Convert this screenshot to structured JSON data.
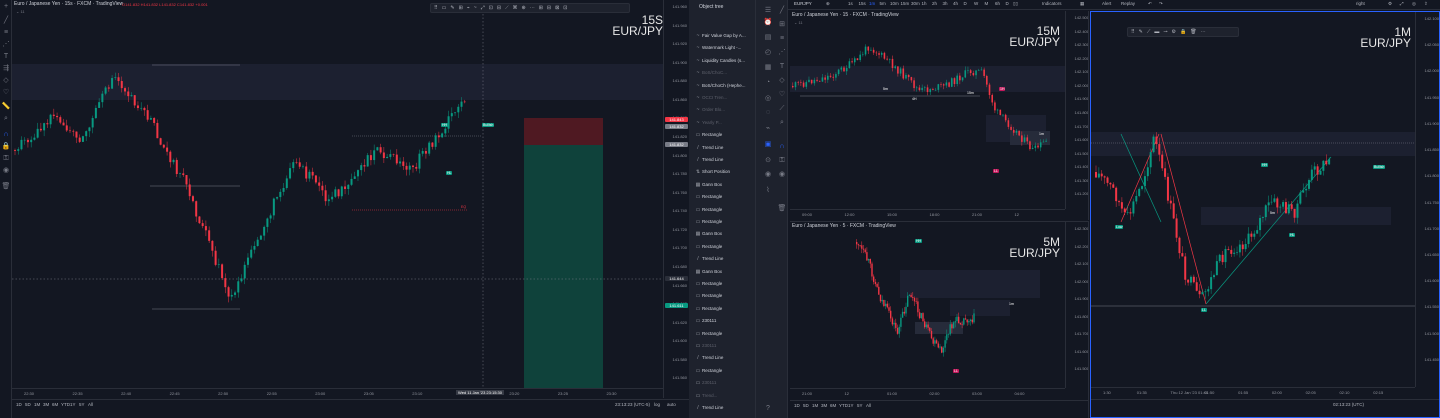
{
  "left_chart": {
    "title": "Euro / Japanese Yen · 15s · FXCM · TradingView",
    "watermark_interval": "15S",
    "watermark_symbol": "EUR/JPY",
    "prices": [
      "141.960",
      "141.940",
      "141.920",
      "141.900",
      "141.880",
      "141.860",
      "141.840",
      "141.820",
      "141.800",
      "141.780",
      "141.760",
      "141.740",
      "141.720",
      "141.700",
      "141.680",
      "141.660",
      "141.640",
      "141.620",
      "141.600",
      "141.580",
      "141.560"
    ],
    "price_badges": [
      {
        "text": "141.843",
        "color": "#f23645"
      },
      {
        "text": "141.832",
        "color": "#787b86"
      },
      {
        "text": "141.832",
        "color": "#787b86"
      },
      {
        "text": "141.644",
        "color": "#2a2e39"
      },
      {
        "text": "141.611",
        "color": "#089981"
      }
    ],
    "times": [
      "22:30",
      "22:35",
      "22:40",
      "22:45",
      "22:50",
      "22:55",
      "23:00",
      "23:05",
      "23:10",
      "23:15",
      "23:20",
      "23:25",
      "23:30"
    ],
    "cursor_time": "Wed 11 Jan '23 23:15:30",
    "intervals": [
      "1D",
      "5D",
      "1M",
      "3M",
      "6M",
      "YTD",
      "1Y",
      "5Y",
      "All"
    ],
    "clock": "23:13:23 (UTC-5)",
    "log_label": "log",
    "auto_label": "auto",
    "labels": {
      "bullish": "Bullish",
      "hh": "HH",
      "hl": "HL",
      "eq": "EQ"
    }
  },
  "object_tree": {
    "header": "Object tree",
    "items": [
      {
        "icon": "~",
        "label": "Fair Value Gap by A...",
        "dim": false
      },
      {
        "icon": "~",
        "label": "Watermark Light -...",
        "dim": false
      },
      {
        "icon": "~",
        "label": "Liquidity Candles (s...",
        "dim": false
      },
      {
        "icon": "~",
        "label": "BoS/ChoC...",
        "dim": true
      },
      {
        "icon": "~",
        "label": "BoS/ChoCh (Hephe...",
        "dim": false
      },
      {
        "icon": "~",
        "label": "OCCI Tren...",
        "dim": true
      },
      {
        "icon": "~",
        "label": "Order Blo...",
        "dim": true
      },
      {
        "icon": "~",
        "label": "Yearly P...",
        "dim": true
      },
      {
        "icon": "▭",
        "label": "Rectangle",
        "dim": false
      },
      {
        "icon": "/",
        "label": "Trend Line",
        "dim": false
      },
      {
        "icon": "/",
        "label": "Trend Line",
        "dim": false
      },
      {
        "icon": "⇅",
        "label": "Short Position",
        "dim": false
      },
      {
        "icon": "▦",
        "label": "Gann Box",
        "dim": false
      },
      {
        "icon": "▭",
        "label": "Rectangle",
        "dim": false
      },
      {
        "icon": "▭",
        "label": "Rectangle",
        "dim": false
      },
      {
        "icon": "▭",
        "label": "Rectangle",
        "dim": false
      },
      {
        "icon": "▦",
        "label": "Gann Box",
        "dim": false
      },
      {
        "icon": "▭",
        "label": "Rectangle",
        "dim": false
      },
      {
        "icon": "/",
        "label": "Trend Line",
        "dim": false
      },
      {
        "icon": "▦",
        "label": "Gann Box",
        "dim": false
      },
      {
        "icon": "▭",
        "label": "Rectangle",
        "dim": false
      },
      {
        "icon": "▭",
        "label": "Rectangle",
        "dim": false
      },
      {
        "icon": "▭",
        "label": "Rectangle",
        "dim": false
      },
      {
        "icon": "▭",
        "label": "230111",
        "dim": false
      },
      {
        "icon": "▭",
        "label": "Rectangle",
        "dim": false
      },
      {
        "icon": "▭",
        "label": "230111",
        "dim": true
      },
      {
        "icon": "/",
        "label": "Trend Line",
        "dim": false
      },
      {
        "icon": "▭",
        "label": "Rectangle",
        "dim": false
      },
      {
        "icon": "▭",
        "label": "230111",
        "dim": true
      },
      {
        "icon": "▭",
        "label": "Trend...",
        "dim": true
      },
      {
        "icon": "/",
        "label": "Trend Line",
        "dim": false
      }
    ]
  },
  "top_toolbar": {
    "symbol": "EURJPY",
    "intervals": [
      "1s",
      "15s",
      "1m",
      "5m",
      "10m",
      "15m",
      "30m",
      "1h",
      "2h",
      "3h",
      "4h",
      "D",
      "W",
      "M",
      "6h",
      "D"
    ],
    "indicators": "Indicators",
    "alert": "Alert",
    "replay": "Replay",
    "layout": "right"
  },
  "chart_15m": {
    "title": "Euro / Japanese Yen · 15 · FXCM · TradingView",
    "watermark_interval": "15M",
    "watermark_symbol": "EUR/JPY",
    "prices": [
      "142.500",
      "142.400",
      "142.300",
      "142.200",
      "142.100",
      "142.000",
      "141.900",
      "141.800",
      "141.700",
      "141.600",
      "141.500",
      "141.400",
      "141.300",
      "141.200"
    ],
    "times": [
      "09:00",
      "12:00",
      "15:00",
      "18:00",
      "21:00",
      "12"
    ],
    "labels": {
      "l5m": "5m",
      "l15m": "15m",
      "l4h": "4H",
      "l1h": "1H",
      "l1m": "1m",
      "ll": "LL"
    }
  },
  "chart_5m": {
    "title": "Euro / Japanese Yen · 5 · FXCM · TradingView",
    "watermark_interval": "5M",
    "watermark_symbol": "EUR/JPY",
    "prices": [
      "142.300",
      "142.200",
      "142.100",
      "142.000",
      "141.900",
      "141.800",
      "141.700",
      "141.600",
      "141.500"
    ],
    "times": [
      "21:00",
      "12",
      "01:00",
      "02:00",
      "03:00",
      "04:00"
    ],
    "intervals": [
      "1D",
      "5D",
      "1M",
      "3M",
      "6M",
      "YTD",
      "1Y",
      "5Y",
      "All"
    ],
    "labels": {
      "hh": "HH",
      "l1m": "1m",
      "ll": "LL"
    }
  },
  "chart_1m": {
    "watermark_interval": "1M",
    "watermark_symbol": "EUR/JPY",
    "prices": [
      "142.100",
      "142.050",
      "142.000",
      "141.950",
      "141.900",
      "141.850",
      "141.800",
      "141.750",
      "141.700",
      "141.650",
      "141.600",
      "141.550",
      "141.500",
      "141.450"
    ],
    "times": [
      "1:30",
      "01:35",
      "Thu 12 Jan '23 01:40",
      "01:50",
      "01:55",
      "02:00",
      "02:05",
      "02:10",
      "02:15"
    ],
    "clock": "02:13:23 (UTC)",
    "labels": {
      "low": "Low",
      "hh": "HH",
      "bullish": "Bullish",
      "hl": "HL",
      "ll": "LL",
      "l5m": "5m"
    }
  }
}
